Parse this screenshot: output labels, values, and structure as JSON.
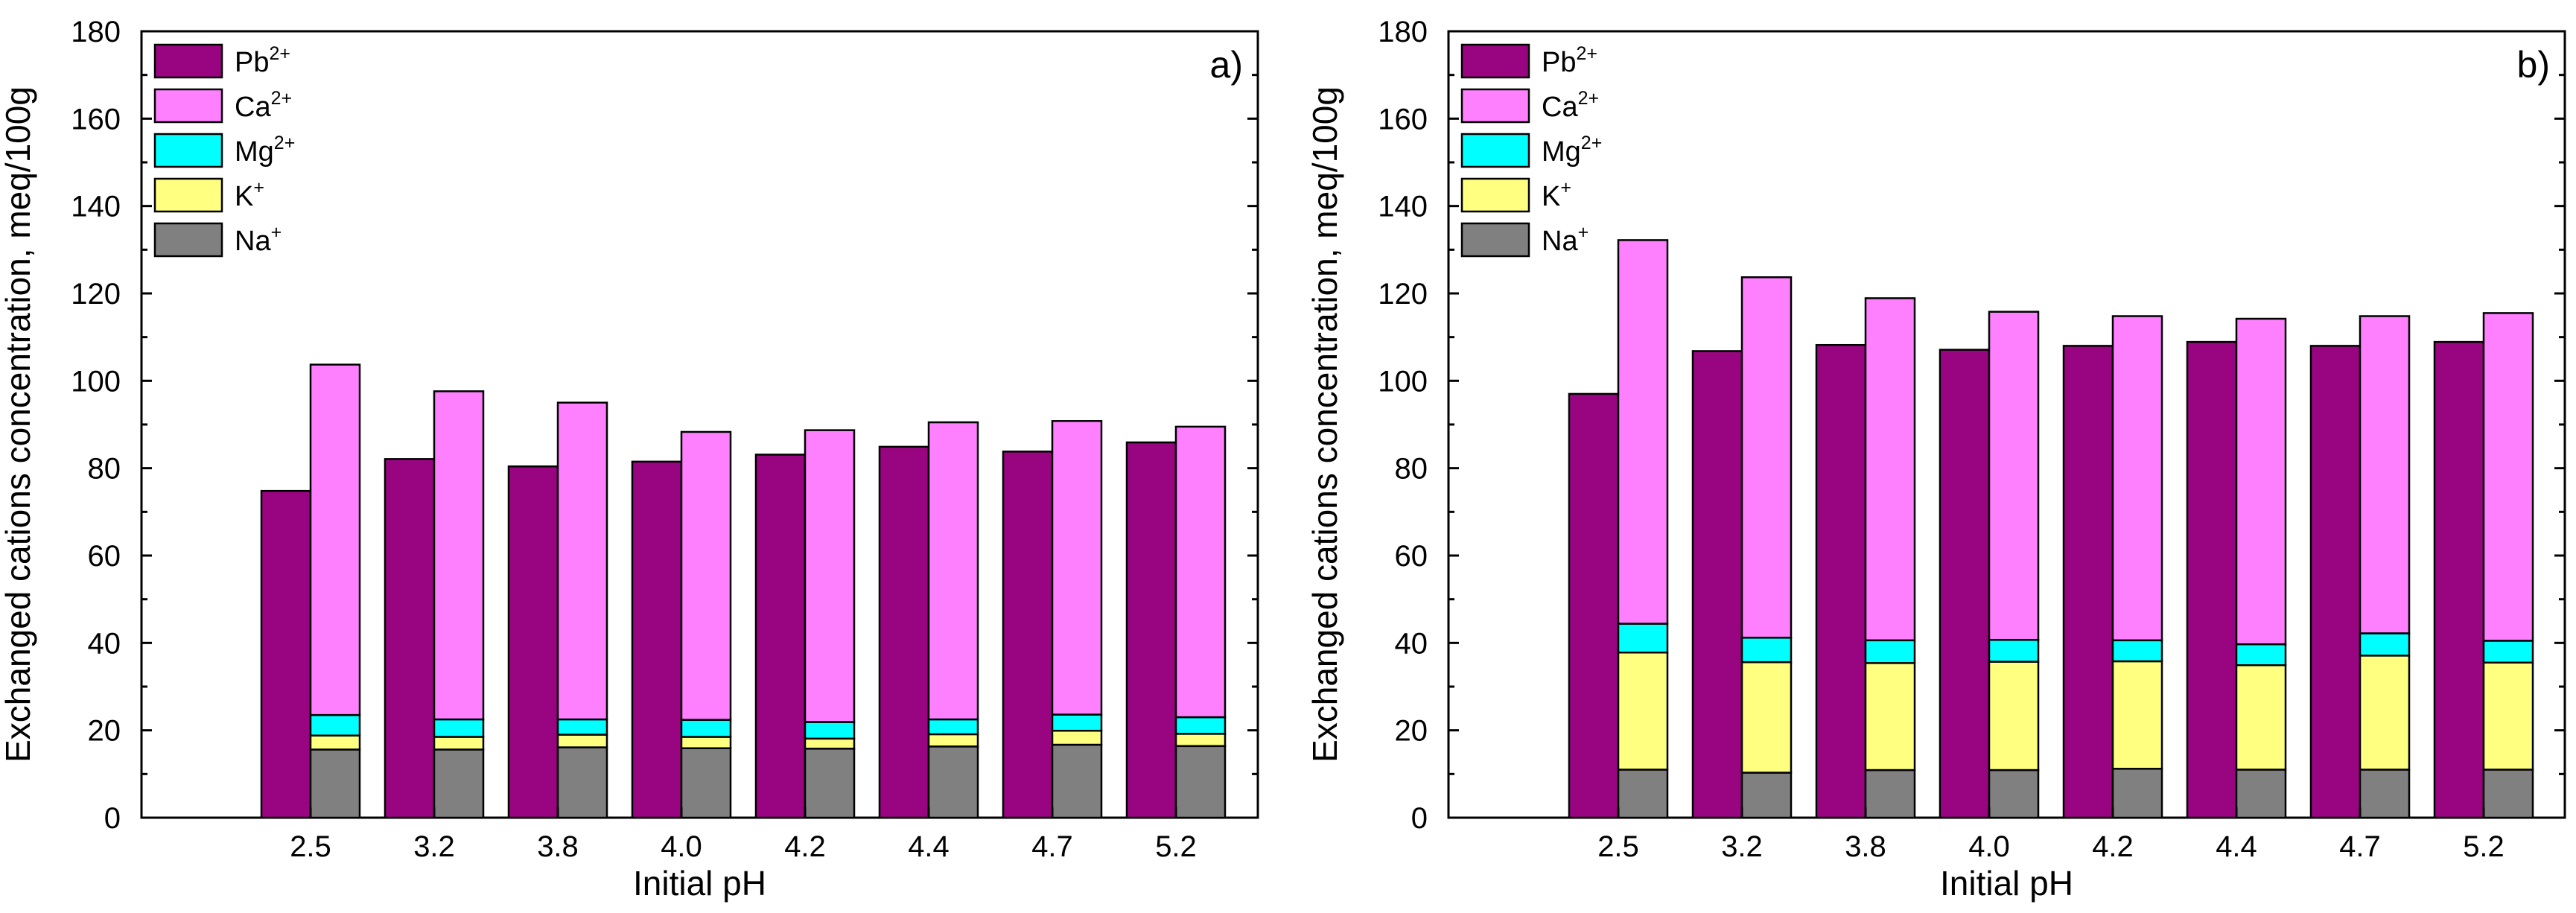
{
  "chart_data": [
    {
      "panel": "a)",
      "type": "bar",
      "stacking": "grouped-stacked",
      "xlabel": "Initial pH",
      "ylabel": "Exchanged cations concentration, meq/100g",
      "ylim": [
        0,
        180
      ],
      "yticks": [
        0,
        20,
        40,
        60,
        80,
        100,
        120,
        140,
        160,
        180
      ],
      "categories": [
        "2.5",
        "3.2",
        "3.8",
        "4.0",
        "4.2",
        "4.4",
        "4.7",
        "5.2"
      ],
      "legend_position": "top-left",
      "lead": {
        "name": "Pb",
        "charge": "2+",
        "values": [
          74.8,
          82.1,
          80.4,
          81.5,
          83.1,
          84.9,
          83.8,
          85.9
        ]
      },
      "stack": [
        {
          "name": "Na",
          "charge": "+",
          "values": [
            15.6,
            15.6,
            16.1,
            15.9,
            15.8,
            16.3,
            16.7,
            16.4
          ]
        },
        {
          "name": "K",
          "charge": "+",
          "values": [
            3.2,
            2.9,
            2.9,
            2.6,
            2.3,
            2.8,
            3.2,
            2.8
          ]
        },
        {
          "name": "Mg",
          "charge": "2+",
          "values": [
            4.7,
            4.0,
            3.5,
            3.9,
            3.8,
            3.4,
            3.7,
            3.8
          ]
        },
        {
          "name": "Ca",
          "charge": "2+",
          "values": [
            80.2,
            75.1,
            72.5,
            65.9,
            66.8,
            68.0,
            67.2,
            66.5
          ]
        }
      ]
    },
    {
      "panel": "b)",
      "type": "bar",
      "stacking": "grouped-stacked",
      "xlabel": "Initial pH",
      "ylabel": "Exchanged cations concentration, meq/100g",
      "ylim": [
        0,
        180
      ],
      "yticks": [
        0,
        20,
        40,
        60,
        80,
        100,
        120,
        140,
        160,
        180
      ],
      "categories": [
        "2.5",
        "3.2",
        "3.8",
        "4.0",
        "4.2",
        "4.4",
        "4.7",
        "5.2"
      ],
      "legend_position": "top-left",
      "lead": {
        "name": "Pb",
        "charge": "2+",
        "values": [
          97.0,
          106.8,
          108.2,
          107.1,
          108.0,
          108.9,
          108.0,
          108.9
        ]
      },
      "stack": [
        {
          "name": "Na",
          "charge": "+",
          "values": [
            11.0,
            10.3,
            10.9,
            10.9,
            11.2,
            11.0,
            11.0,
            11.0
          ]
        },
        {
          "name": "K",
          "charge": "+",
          "values": [
            26.8,
            25.3,
            24.5,
            24.8,
            24.6,
            23.9,
            26.1,
            24.5
          ]
        },
        {
          "name": "Mg",
          "charge": "2+",
          "values": [
            6.6,
            5.6,
            5.2,
            5.0,
            4.8,
            4.8,
            5.1,
            5.0
          ]
        },
        {
          "name": "Ca",
          "charge": "2+",
          "values": [
            87.8,
            82.5,
            78.3,
            75.1,
            74.2,
            74.5,
            72.6,
            75.0
          ]
        }
      ]
    }
  ],
  "legend": {
    "entries": [
      {
        "name": "Pb",
        "charge": "2+"
      },
      {
        "name": "Ca",
        "charge": "2+"
      },
      {
        "name": "Mg",
        "charge": "2+"
      },
      {
        "name": "K",
        "charge": "+"
      },
      {
        "name": "Na",
        "charge": "+"
      }
    ]
  },
  "colors": {
    "Pb": "#990580",
    "Ca": "#ff80ff",
    "Mg": "#00ffff",
    "K": "#ffff80",
    "Na": "#808080",
    "axis": "#000000"
  }
}
